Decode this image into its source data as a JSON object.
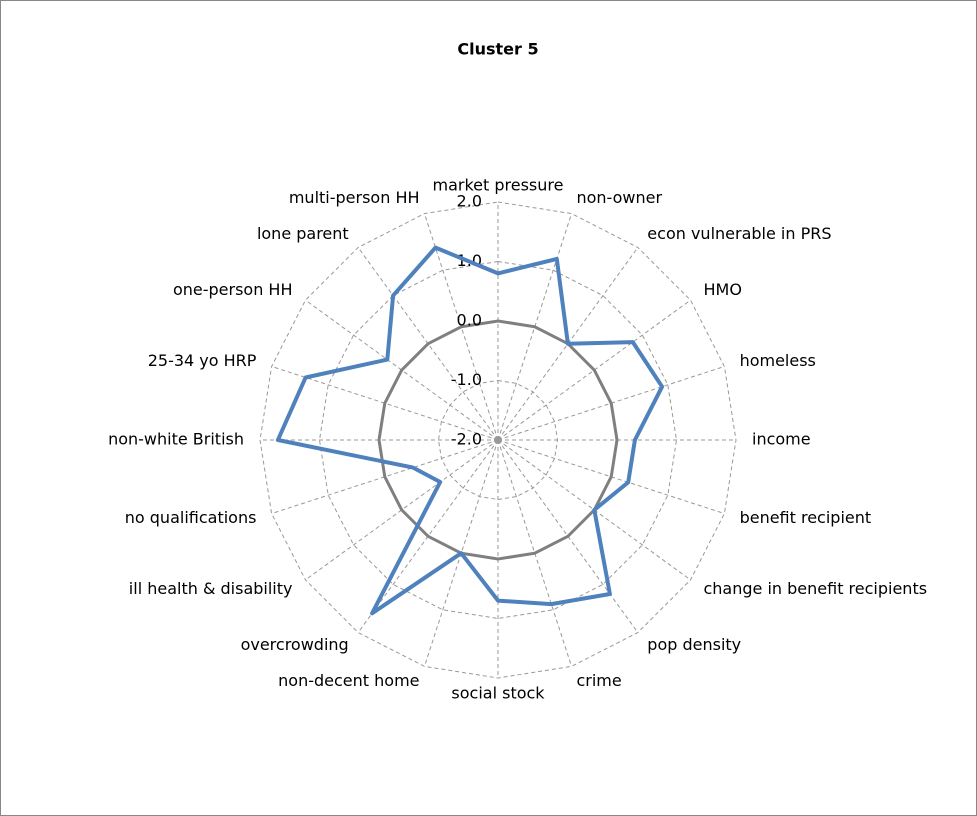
{
  "chart_data": {
    "type": "radar",
    "title": "Cluster 5",
    "categories": [
      "market pressure",
      "non-owner",
      "econ vulnerable in PRS",
      "HMO",
      "homeless",
      "income",
      "benefit recipient",
      "change in benefit recipients",
      "pop density",
      "crime",
      "social stock",
      "non-decent home",
      "overcrowding",
      "ill health & disability",
      "no qualifications",
      "non-white British",
      "25-34 yo HRP",
      "one-person HH",
      "lone parent",
      "multi-person HH"
    ],
    "series": [
      {
        "color": "#4f81bd",
        "values": [
          0.8,
          1.2,
          0.0,
          0.8,
          0.9,
          0.3,
          0.3,
          0.0,
          1.2,
          0.9,
          0.7,
          0.0,
          1.6,
          -0.8,
          -0.5,
          1.7,
          1.4,
          0.3,
          1.0,
          1.4
        ]
      }
    ],
    "ylim": [
      -2,
      2
    ],
    "yticks": [
      {
        "value": -2,
        "label": "-2.0"
      },
      {
        "value": -1,
        "label": "-1.0"
      },
      {
        "value": 0,
        "label": "0.0"
      },
      {
        "value": 1,
        "label": "1.0"
      },
      {
        "value": 2,
        "label": "2.0"
      }
    ],
    "grid": true
  }
}
